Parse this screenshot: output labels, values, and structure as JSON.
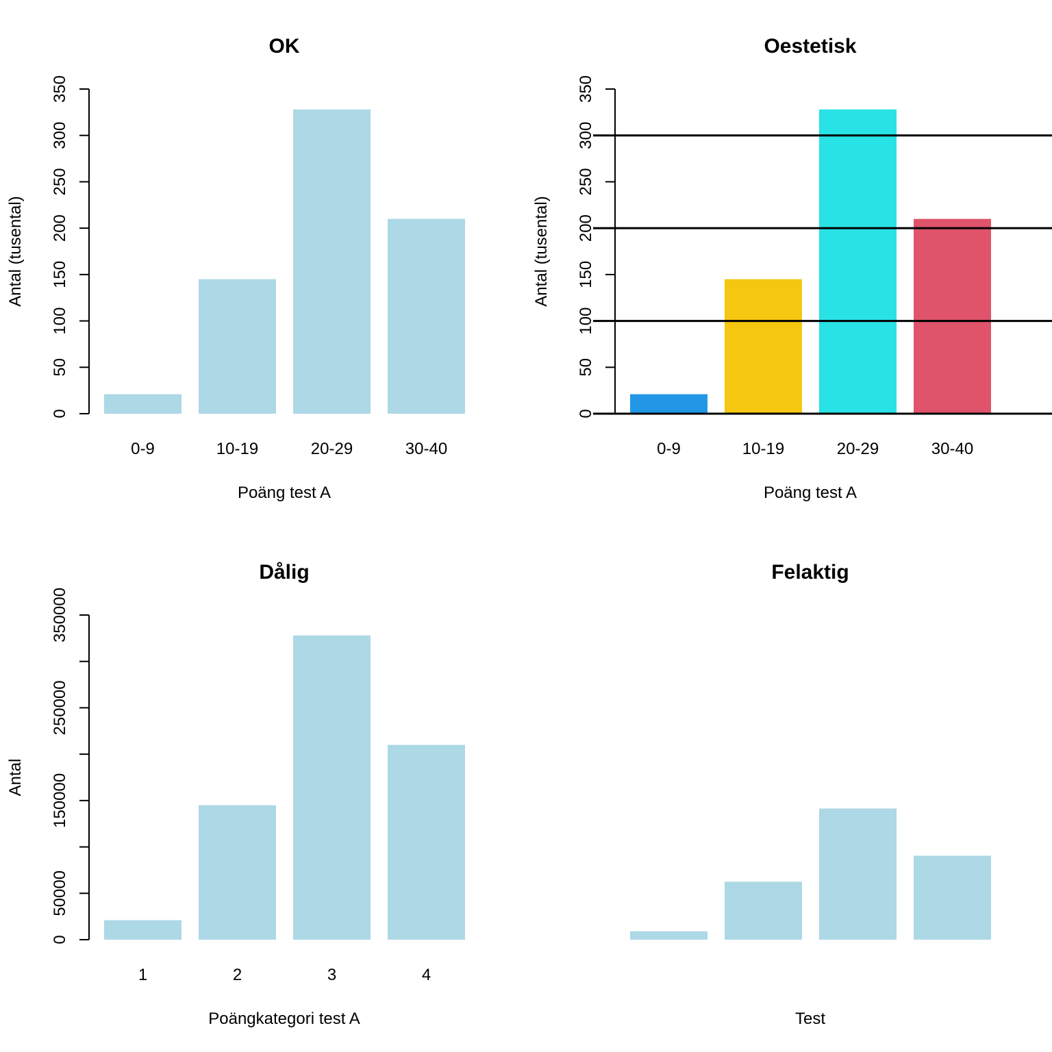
{
  "colors": {
    "default_bar": "#ADD8E6",
    "axis": "#000000"
  },
  "chart_data": [
    {
      "type": "bar",
      "title": "OK",
      "categories": [
        "0-9",
        "10-19",
        "20-29",
        "30-40"
      ],
      "values": [
        21,
        145,
        328,
        210
      ],
      "bar_colors": [
        "#ADD8E6",
        "#ADD8E6",
        "#ADD8E6",
        "#ADD8E6"
      ],
      "xlabel": "Poäng test A",
      "ylabel": "Antal (tusental)",
      "ylim": [
        0,
        350
      ],
      "yticks": [
        0,
        50,
        100,
        150,
        200,
        250,
        300,
        350
      ],
      "ytick_labels": [
        "0",
        "50",
        "100",
        "150",
        "200",
        "250",
        "300",
        "350"
      ],
      "show_y_axis": true,
      "show_x_tick_labels": true,
      "hlines": [],
      "baseline": false
    },
    {
      "type": "bar",
      "title": "Oestetisk",
      "categories": [
        "0-9",
        "10-19",
        "20-29",
        "30-40"
      ],
      "values": [
        21,
        145,
        328,
        210
      ],
      "bar_colors": [
        "#2297E6",
        "#F5C710",
        "#28E2E5",
        "#DF536B"
      ],
      "xlabel": "Poäng test A",
      "ylabel": "Antal (tusental)",
      "ylim": [
        0,
        350
      ],
      "yticks": [
        0,
        50,
        100,
        150,
        200,
        250,
        300,
        350
      ],
      "ytick_labels": [
        "0",
        "50",
        "100",
        "150",
        "200",
        "250",
        "300",
        "350"
      ],
      "show_y_axis": true,
      "show_x_tick_labels": true,
      "hlines": [
        100,
        200,
        300
      ],
      "baseline": true
    },
    {
      "type": "bar",
      "title": "Dålig",
      "categories": [
        "1",
        "2",
        "3",
        "4"
      ],
      "values": [
        21000,
        145000,
        328000,
        210000
      ],
      "bar_colors": [
        "#ADD8E6",
        "#ADD8E6",
        "#ADD8E6",
        "#ADD8E6"
      ],
      "xlabel": "Poängkategori test A",
      "ylabel": "Antal",
      "ylim": [
        0,
        350000
      ],
      "yticks": [
        0,
        50000,
        100000,
        150000,
        200000,
        250000,
        300000,
        350000
      ],
      "ytick_labels": [
        "0",
        "50000",
        "",
        "150000",
        "",
        "250000",
        "",
        "350000"
      ],
      "show_y_axis": true,
      "show_x_tick_labels": true,
      "hlines": [],
      "baseline": false
    },
    {
      "type": "bar",
      "title": "Felaktig",
      "categories": [
        "",
        "",
        "",
        ""
      ],
      "values": [
        21,
        145,
        328,
        210
      ],
      "bar_colors": [
        "#ADD8E6",
        "#ADD8E6",
        "#ADD8E6",
        "#ADD8E6"
      ],
      "xlabel": "Test",
      "ylabel": "",
      "ylim": [
        0,
        812
      ],
      "yticks": [],
      "ytick_labels": [],
      "show_y_axis": false,
      "show_x_tick_labels": false,
      "hlines": [],
      "baseline": false
    }
  ]
}
